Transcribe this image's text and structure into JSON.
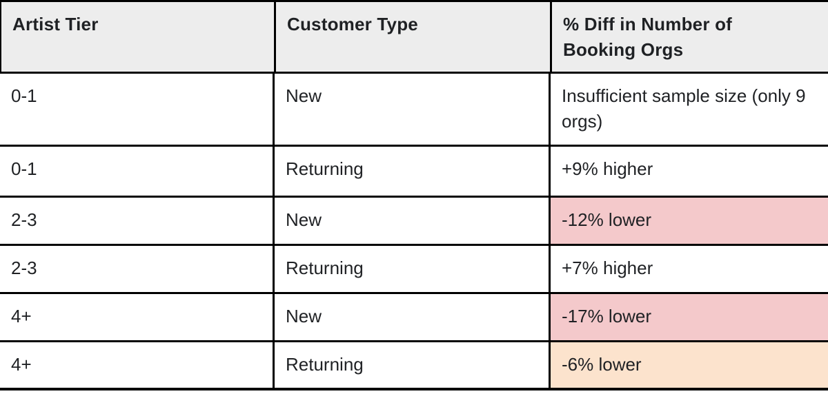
{
  "table": {
    "columns": [
      {
        "label": "Artist Tier"
      },
      {
        "label": "Customer Type"
      },
      {
        "label": "% Diff in Number of Booking Orgs"
      }
    ],
    "rows": [
      {
        "artist_tier": "0-1",
        "customer_type": "New",
        "diff": "Insufficient sample size (only 9 orgs)",
        "highlight": "none"
      },
      {
        "artist_tier": "0-1",
        "customer_type": "Returning",
        "diff": "+9% higher",
        "highlight": "none"
      },
      {
        "artist_tier": "2-3",
        "customer_type": "New",
        "diff": "-12% lower",
        "highlight": "red"
      },
      {
        "artist_tier": "2-3",
        "customer_type": "Returning",
        "diff": "+7% higher",
        "highlight": "none"
      },
      {
        "artist_tier": "4+",
        "customer_type": "New",
        "diff": "-17% lower",
        "highlight": "red"
      },
      {
        "artist_tier": "4+",
        "customer_type": "Returning",
        "diff": "-6% lower",
        "highlight": "orange"
      }
    ],
    "colors": {
      "header_bg": "#ededed",
      "border": "#000000",
      "highlight_red": "#f4c9cb",
      "highlight_orange": "#fce3cd",
      "text": "#1f2124"
    }
  }
}
